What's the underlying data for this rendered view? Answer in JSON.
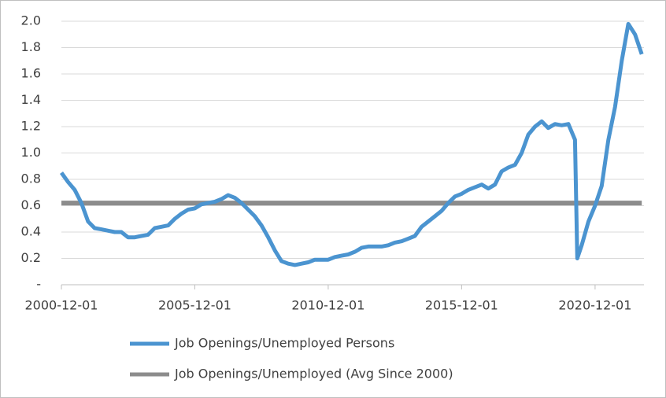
{
  "chart_data": {
    "type": "line",
    "x": [
      "2000-12-01",
      "2001-03-01",
      "2001-06-01",
      "2001-09-01",
      "2001-12-01",
      "2002-03-01",
      "2002-06-01",
      "2002-09-01",
      "2002-12-01",
      "2003-03-01",
      "2003-06-01",
      "2003-09-01",
      "2003-12-01",
      "2004-03-01",
      "2004-06-01",
      "2004-09-01",
      "2004-12-01",
      "2005-03-01",
      "2005-06-01",
      "2005-09-01",
      "2005-12-01",
      "2006-03-01",
      "2006-06-01",
      "2006-09-01",
      "2006-12-01",
      "2007-03-01",
      "2007-06-01",
      "2007-09-01",
      "2007-12-01",
      "2008-03-01",
      "2008-06-01",
      "2008-09-01",
      "2008-12-01",
      "2009-03-01",
      "2009-06-01",
      "2009-09-01",
      "2009-12-01",
      "2010-03-01",
      "2010-06-01",
      "2010-09-01",
      "2010-12-01",
      "2011-03-01",
      "2011-06-01",
      "2011-09-01",
      "2011-12-01",
      "2012-03-01",
      "2012-06-01",
      "2012-09-01",
      "2012-12-01",
      "2013-03-01",
      "2013-06-01",
      "2013-09-01",
      "2013-12-01",
      "2014-03-01",
      "2014-06-01",
      "2014-09-01",
      "2014-12-01",
      "2015-03-01",
      "2015-06-01",
      "2015-09-01",
      "2015-12-01",
      "2016-03-01",
      "2016-06-01",
      "2016-09-01",
      "2016-12-01",
      "2017-03-01",
      "2017-06-01",
      "2017-09-01",
      "2017-12-01",
      "2018-03-01",
      "2018-06-01",
      "2018-09-01",
      "2018-12-01",
      "2019-03-01",
      "2019-06-01",
      "2019-09-01",
      "2019-12-01",
      "2020-03-01",
      "2020-04-01",
      "2020-06-01",
      "2020-09-01",
      "2020-12-01",
      "2021-03-01",
      "2021-06-01",
      "2021-09-01",
      "2021-12-01",
      "2022-03-01",
      "2022-06-01",
      "2022-09-01"
    ],
    "series": [
      {
        "name": "Job Openings/Unemployed Persons",
        "color": "#4b94d0",
        "values": [
          0.85,
          0.78,
          0.72,
          0.62,
          0.48,
          0.43,
          0.42,
          0.41,
          0.4,
          0.4,
          0.36,
          0.36,
          0.37,
          0.38,
          0.43,
          0.44,
          0.45,
          0.5,
          0.54,
          0.57,
          0.58,
          0.61,
          0.62,
          0.63,
          0.65,
          0.68,
          0.66,
          0.62,
          0.57,
          0.52,
          0.45,
          0.36,
          0.26,
          0.18,
          0.16,
          0.15,
          0.16,
          0.17,
          0.19,
          0.19,
          0.19,
          0.21,
          0.22,
          0.23,
          0.25,
          0.28,
          0.29,
          0.29,
          0.29,
          0.3,
          0.32,
          0.33,
          0.35,
          0.37,
          0.44,
          0.48,
          0.52,
          0.56,
          0.62,
          0.67,
          0.69,
          0.72,
          0.74,
          0.76,
          0.73,
          0.76,
          0.86,
          0.89,
          0.91,
          1.0,
          1.14,
          1.2,
          1.24,
          1.19,
          1.22,
          1.21,
          1.22,
          1.1,
          0.2,
          0.3,
          0.48,
          0.6,
          0.75,
          1.1,
          1.35,
          1.7,
          1.98,
          1.9,
          1.75
        ]
      },
      {
        "name": "Job Openings/Unemployed (Avg Since 2000)",
        "color": "#8c8c8c",
        "values": [
          0.62,
          0.62,
          0.62,
          0.62,
          0.62,
          0.62,
          0.62,
          0.62,
          0.62,
          0.62,
          0.62,
          0.62,
          0.62,
          0.62,
          0.62,
          0.62,
          0.62,
          0.62,
          0.62,
          0.62,
          0.62,
          0.62,
          0.62,
          0.62,
          0.62,
          0.62,
          0.62,
          0.62,
          0.62,
          0.62,
          0.62,
          0.62,
          0.62,
          0.62,
          0.62,
          0.62,
          0.62,
          0.62,
          0.62,
          0.62,
          0.62,
          0.62,
          0.62,
          0.62,
          0.62,
          0.62,
          0.62,
          0.62,
          0.62,
          0.62,
          0.62,
          0.62,
          0.62,
          0.62,
          0.62,
          0.62,
          0.62,
          0.62,
          0.62,
          0.62,
          0.62,
          0.62,
          0.62,
          0.62,
          0.62,
          0.62,
          0.62,
          0.62,
          0.62,
          0.62,
          0.62,
          0.62,
          0.62,
          0.62,
          0.62,
          0.62,
          0.62,
          0.62,
          0.62,
          0.62,
          0.62,
          0.62,
          0.62,
          0.62,
          0.62,
          0.62,
          0.62,
          0.62,
          0.62
        ]
      }
    ],
    "xlim": [
      "2000-12-01",
      "2022-10-01"
    ],
    "xticks": [
      "2000-12-01",
      "2005-12-01",
      "2010-12-01",
      "2015-12-01",
      "2020-12-01"
    ],
    "ylim": [
      0,
      2
    ],
    "yticks": [
      {
        "value": 0,
        "label": "-"
      },
      0.2,
      0.4,
      0.6,
      0.8,
      {
        "value": 1,
        "label": "1.0"
      },
      1.2,
      1.4,
      1.6,
      1.8,
      {
        "value": 2,
        "label": "2.0"
      }
    ],
    "grid": true
  }
}
